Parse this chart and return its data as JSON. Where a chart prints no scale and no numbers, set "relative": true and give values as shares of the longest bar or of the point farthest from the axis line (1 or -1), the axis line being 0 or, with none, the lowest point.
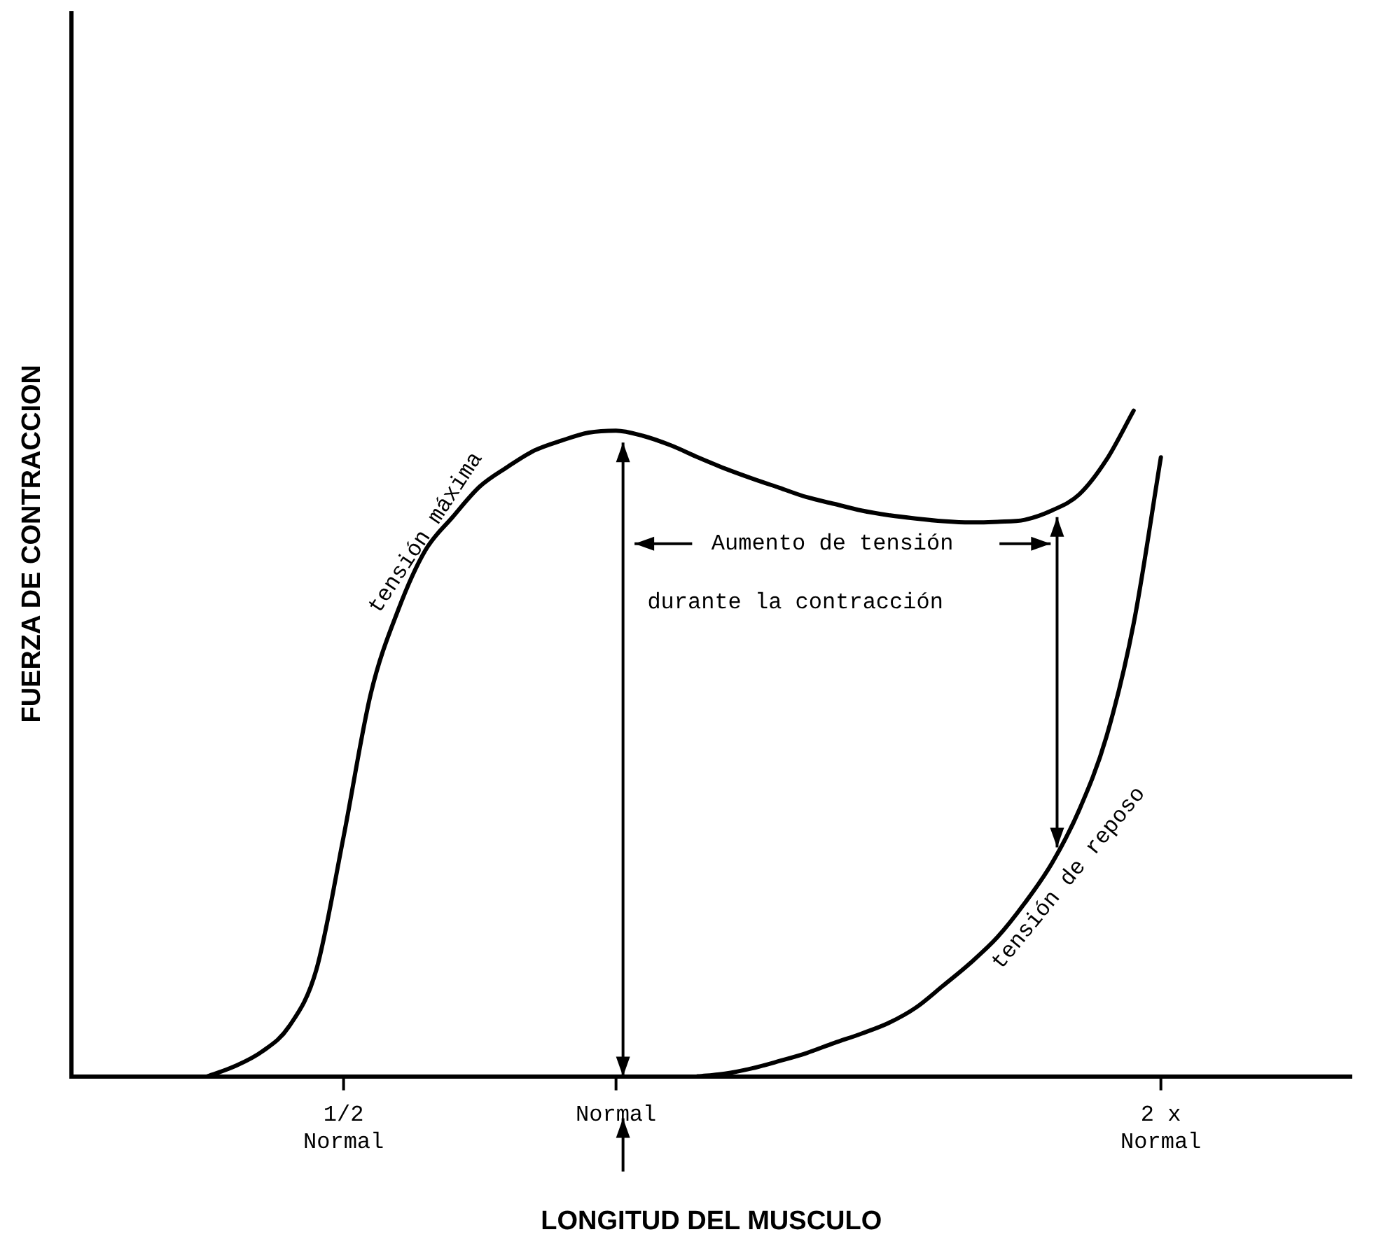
{
  "chart_data": {
    "type": "line",
    "relative": true,
    "xlabel": "LONGITUD DEL MUSCULO",
    "ylabel": "FUERZA DE CONTRACCION",
    "categories": [
      null,
      null,
      null,
      null,
      null,
      null,
      null,
      null,
      null,
      null,
      "1/2\nNormal",
      null,
      null,
      null,
      null,
      null,
      null,
      null,
      null,
      null,
      "Normal",
      null,
      null,
      null,
      null,
      null,
      null,
      null,
      null,
      null,
      null,
      null,
      null,
      null,
      null,
      null,
      null,
      null,
      null,
      null,
      "2 x\nNormal",
      null,
      null,
      null,
      null,
      null,
      null,
      null
    ],
    "grid": false,
    "legend": false,
    "marker": "none",
    "line_style": "solid",
    "annotations": [
      "Aumento de tensión",
      "durante la contracción"
    ],
    "series": [
      {
        "name": "tensión máxima",
        "color": "#000000",
        "values": [
          null,
          null,
          null,
          null,
          null,
          0,
          0.015,
          0.037,
          0.075,
          0.16,
          0.36,
          0.575,
          0.7,
          0.79,
          0.84,
          0.886,
          0.915,
          0.94,
          0.955,
          0.967,
          0.97,
          0.962,
          0.948,
          0.93,
          0.913,
          0.898,
          0.884,
          0.87,
          0.86,
          0.85,
          0.843,
          0.838,
          0.834,
          0.832,
          0.833,
          0.836,
          0.85,
          0.874,
          0.926,
          1,
          null,
          null,
          null,
          null,
          null,
          null,
          null,
          null
        ]
      },
      {
        "name": "tensión de reposo",
        "color": "#000000",
        "values": [
          null,
          null,
          null,
          null,
          null,
          null,
          null,
          null,
          null,
          null,
          null,
          null,
          null,
          null,
          null,
          null,
          null,
          null,
          null,
          null,
          null,
          null,
          null,
          0,
          0.004,
          0.012,
          0.023,
          0.035,
          0.05,
          0.064,
          0.08,
          0.103,
          0.136,
          0.17,
          0.209,
          0.26,
          0.32,
          0.4,
          0.51,
          0.68,
          0.93,
          null,
          null,
          null,
          null,
          null,
          null,
          null
        ]
      }
    ]
  }
}
